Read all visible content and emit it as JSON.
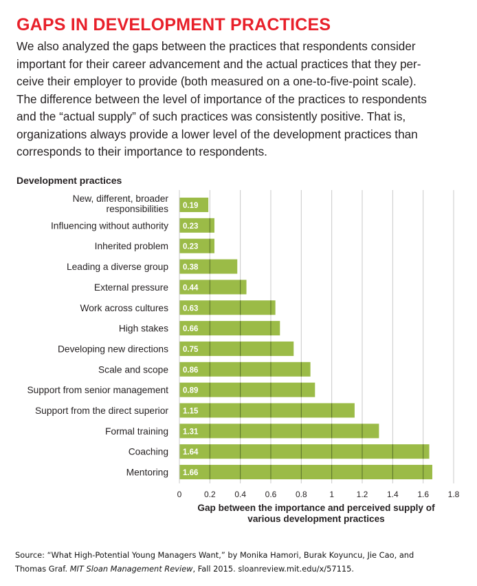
{
  "header": {
    "title": "GAPS IN DEVELOPMENT PRACTICES",
    "intro_lines": [
      "We also analyzed the gaps between the practices that respondents consider",
      "important for their career advancement and the actual practices that they per-",
      "ceive their employer to provide (both measured on a one-to-five-point scale).",
      "The difference between the level of importance of the practices to respondents",
      "and the “actual supply” of such practices was consistently positive. That is,",
      "organizations always provide a lower level of the development practices than",
      "corresponds to their importance to respondents."
    ]
  },
  "colors": {
    "title": "#e8202a",
    "bar": "#9bbb47",
    "bar_label": "#ffffff",
    "gridline": "#c8c8c8",
    "gridline_over_bar": "#58702a",
    "text": "#231f20"
  },
  "chart_data": {
    "type": "bar",
    "orientation": "horizontal",
    "category_axis_title": "Development practices",
    "categories": [
      [
        "New, different, broader",
        "responsibilities"
      ],
      [
        "Influencing without authority"
      ],
      [
        "Inherited problem"
      ],
      [
        "Leading a diverse group"
      ],
      [
        "External pressure"
      ],
      [
        "Work across cultures"
      ],
      [
        "High stakes"
      ],
      [
        "Developing new directions"
      ],
      [
        "Scale and scope"
      ],
      [
        "Support from senior management"
      ],
      [
        "Support from the direct superior"
      ],
      [
        "Formal training"
      ],
      [
        "Coaching"
      ],
      [
        "Mentoring"
      ]
    ],
    "values": [
      0.19,
      0.23,
      0.23,
      0.38,
      0.44,
      0.63,
      0.66,
      0.75,
      0.86,
      0.89,
      1.15,
      1.31,
      1.64,
      1.66
    ],
    "value_labels": [
      "0.19",
      "0.23",
      "0.23",
      "0.38",
      "0.44",
      "0.63",
      "0.66",
      "0.75",
      "0.86",
      "0.89",
      "1.15",
      "1.31",
      "1.64",
      "1.66"
    ],
    "xticks": [
      "0",
      "0.2",
      "0.4",
      "0.6",
      "0.8",
      "1",
      "1.2",
      "1.4",
      "1.6",
      "1.8"
    ],
    "xlim": [
      0,
      1.8
    ],
    "xlabel_lines": [
      "Gap between the importance and perceived supply of",
      "various development practices"
    ],
    "grid": true
  },
  "source": {
    "line1": "Source: “What High-Potential Young Managers Want,” by Monika Hamori, Burak Koyuncu, Jie Cao, and",
    "line2_prefix": "Thomas Graf. ",
    "line2_journal": "MIT Sloan Management Review",
    "line2_suffix": ", Fall 2015. sloanreview.mit.edu/x/57115."
  }
}
